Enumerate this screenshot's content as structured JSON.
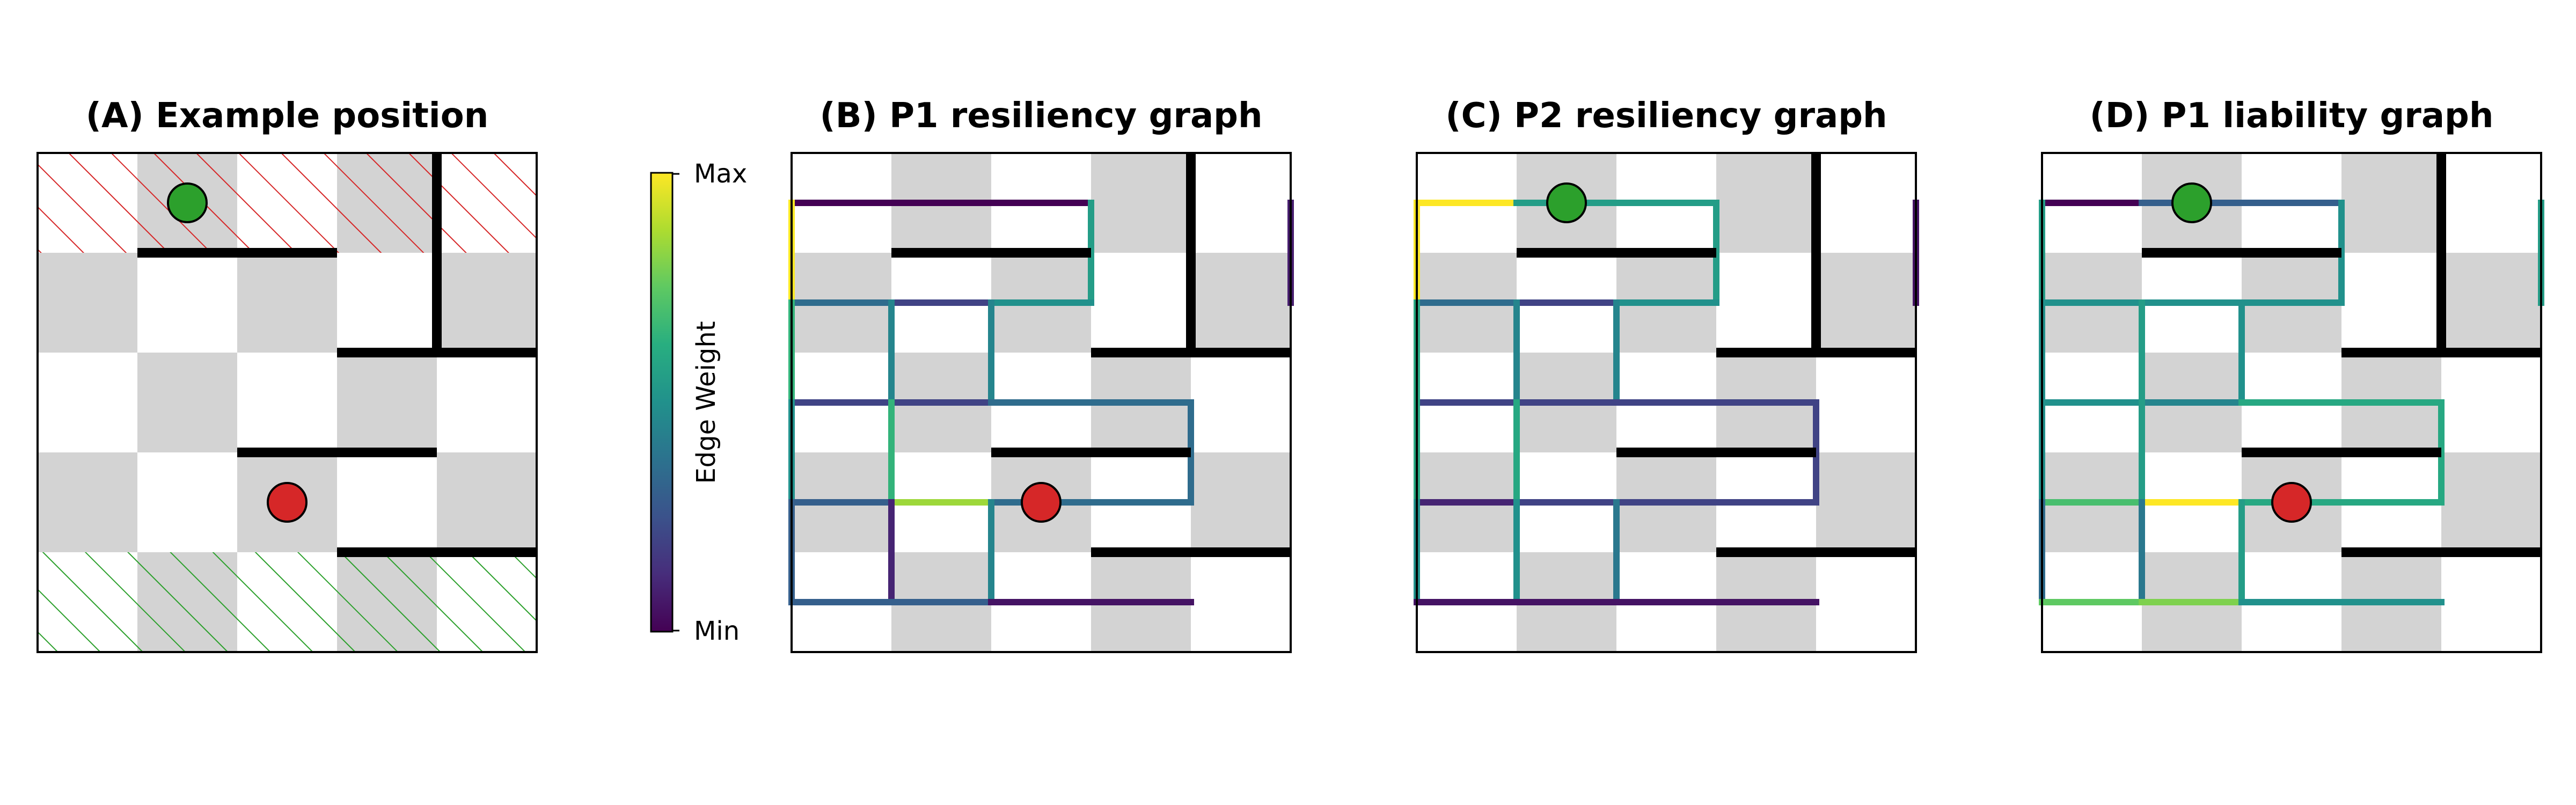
{
  "panels": [
    {
      "id": "A",
      "title": "(A) Example position",
      "hatch_top_color": "#d62728",
      "hatch_bottom_color": "#2ca02c",
      "walls": [
        [
          1,
          1,
          3,
          1
        ],
        [
          4,
          0,
          4,
          2
        ],
        [
          3,
          2,
          5,
          2
        ],
        [
          2,
          3,
          4,
          3
        ],
        [
          3,
          4,
          5,
          4
        ]
      ],
      "pieces": [
        {
          "name": "p1-piece",
          "col": 1,
          "row": 0,
          "color": "#2ca02c"
        },
        {
          "name": "p2-piece",
          "col": 2,
          "row": 3,
          "color": "#d62728"
        }
      ],
      "edges": []
    },
    {
      "id": "B",
      "title": "(B) P1 resiliency graph",
      "walls": [
        [
          1,
          1,
          3,
          1
        ],
        [
          4,
          0,
          4,
          2
        ],
        [
          3,
          2,
          5,
          2
        ],
        [
          2,
          3,
          4,
          3
        ],
        [
          3,
          4,
          5,
          4
        ]
      ],
      "pieces": [
        {
          "name": "p2-piece",
          "col": 2,
          "row": 3,
          "color": "#d62728"
        }
      ],
      "edges": [
        {
          "a": [
            0,
            0
          ],
          "b": [
            1,
            0
          ],
          "w": 0.0
        },
        {
          "a": [
            1,
            0
          ],
          "b": [
            2,
            0
          ],
          "w": 0.0
        },
        {
          "a": [
            2,
            0
          ],
          "b": [
            3,
            0
          ],
          "w": 0.0
        },
        {
          "a": [
            0,
            0
          ],
          "b": [
            0,
            1
          ],
          "w": 1.0
        },
        {
          "a": [
            3,
            0
          ],
          "b": [
            3,
            1
          ],
          "w": 0.55
        },
        {
          "a": [
            5,
            0
          ],
          "b": [
            5,
            1
          ],
          "w": 0.08
        },
        {
          "a": [
            0,
            1
          ],
          "b": [
            1,
            1
          ],
          "w": 0.35
        },
        {
          "a": [
            1,
            1
          ],
          "b": [
            2,
            1
          ],
          "w": 0.2
        },
        {
          "a": [
            2,
            1
          ],
          "b": [
            3,
            1
          ],
          "w": 0.5
        },
        {
          "a": [
            0,
            1
          ],
          "b": [
            0,
            2
          ],
          "w": 0.65
        },
        {
          "a": [
            1,
            1
          ],
          "b": [
            1,
            2
          ],
          "w": 0.45
        },
        {
          "a": [
            2,
            1
          ],
          "b": [
            2,
            2
          ],
          "w": 0.45
        },
        {
          "a": [
            0,
            2
          ],
          "b": [
            1,
            2
          ],
          "w": 0.2
        },
        {
          "a": [
            1,
            2
          ],
          "b": [
            2,
            2
          ],
          "w": 0.2
        },
        {
          "a": [
            2,
            2
          ],
          "b": [
            3,
            2
          ],
          "w": 0.35
        },
        {
          "a": [
            3,
            2
          ],
          "b": [
            4,
            2
          ],
          "w": 0.35
        },
        {
          "a": [
            4,
            2
          ],
          "b": [
            4,
            3
          ],
          "w": 0.35
        },
        {
          "a": [
            0,
            2
          ],
          "b": [
            0,
            3
          ],
          "w": 0.5
        },
        {
          "a": [
            1,
            2
          ],
          "b": [
            1,
            3
          ],
          "w": 0.65
        },
        {
          "a": [
            0,
            3
          ],
          "b": [
            1,
            3
          ],
          "w": 0.3
        },
        {
          "a": [
            1,
            3
          ],
          "b": [
            2,
            3
          ],
          "w": 0.85
        },
        {
          "a": [
            2,
            3
          ],
          "b": [
            3,
            3
          ],
          "w": 0.35
        },
        {
          "a": [
            3,
            3
          ],
          "b": [
            4,
            3
          ],
          "w": 0.35
        },
        {
          "a": [
            0,
            3
          ],
          "b": [
            0,
            4
          ],
          "w": 0.3
        },
        {
          "a": [
            1,
            3
          ],
          "b": [
            1,
            4
          ],
          "w": 0.1
        },
        {
          "a": [
            2,
            3
          ],
          "b": [
            2,
            4
          ],
          "w": 0.45
        },
        {
          "a": [
            0,
            4
          ],
          "b": [
            1,
            4
          ],
          "w": 0.3
        },
        {
          "a": [
            1,
            4
          ],
          "b": [
            2,
            4
          ],
          "w": 0.3
        },
        {
          "a": [
            2,
            4
          ],
          "b": [
            3,
            4
          ],
          "w": 0.05
        },
        {
          "a": [
            3,
            4
          ],
          "b": [
            4,
            4
          ],
          "w": 0.05
        }
      ]
    },
    {
      "id": "C",
      "title": "(C) P2 resiliency graph",
      "walls": [
        [
          1,
          1,
          3,
          1
        ],
        [
          4,
          0,
          4,
          2
        ],
        [
          3,
          2,
          5,
          2
        ],
        [
          2,
          3,
          4,
          3
        ],
        [
          3,
          4,
          5,
          4
        ]
      ],
      "pieces": [
        {
          "name": "p1-piece",
          "col": 1,
          "row": 0,
          "color": "#2ca02c"
        }
      ],
      "edges": [
        {
          "a": [
            0,
            0
          ],
          "b": [
            1,
            0
          ],
          "w": 1.0
        },
        {
          "a": [
            1,
            0
          ],
          "b": [
            2,
            0
          ],
          "w": 0.55
        },
        {
          "a": [
            2,
            0
          ],
          "b": [
            3,
            0
          ],
          "w": 0.55
        },
        {
          "a": [
            0,
            0
          ],
          "b": [
            0,
            1
          ],
          "w": 1.0
        },
        {
          "a": [
            3,
            0
          ],
          "b": [
            3,
            1
          ],
          "w": 0.55
        },
        {
          "a": [
            5,
            0
          ],
          "b": [
            5,
            1
          ],
          "w": 0.05
        },
        {
          "a": [
            0,
            1
          ],
          "b": [
            1,
            1
          ],
          "w": 0.35
        },
        {
          "a": [
            1,
            1
          ],
          "b": [
            2,
            1
          ],
          "w": 0.2
        },
        {
          "a": [
            2,
            1
          ],
          "b": [
            3,
            1
          ],
          "w": 0.5
        },
        {
          "a": [
            0,
            1
          ],
          "b": [
            0,
            2
          ],
          "w": 0.6
        },
        {
          "a": [
            1,
            1
          ],
          "b": [
            1,
            2
          ],
          "w": 0.45
        },
        {
          "a": [
            2,
            1
          ],
          "b": [
            2,
            2
          ],
          "w": 0.45
        },
        {
          "a": [
            0,
            2
          ],
          "b": [
            1,
            2
          ],
          "w": 0.2
        },
        {
          "a": [
            1,
            2
          ],
          "b": [
            2,
            2
          ],
          "w": 0.2
        },
        {
          "a": [
            2,
            2
          ],
          "b": [
            3,
            2
          ],
          "w": 0.2
        },
        {
          "a": [
            3,
            2
          ],
          "b": [
            4,
            2
          ],
          "w": 0.2
        },
        {
          "a": [
            4,
            2
          ],
          "b": [
            4,
            3
          ],
          "w": 0.2
        },
        {
          "a": [
            0,
            2
          ],
          "b": [
            0,
            3
          ],
          "w": 0.6
        },
        {
          "a": [
            1,
            2
          ],
          "b": [
            1,
            3
          ],
          "w": 0.6
        },
        {
          "a": [
            0,
            3
          ],
          "b": [
            1,
            3
          ],
          "w": 0.1
        },
        {
          "a": [
            1,
            3
          ],
          "b": [
            2,
            3
          ],
          "w": 0.2
        },
        {
          "a": [
            2,
            3
          ],
          "b": [
            3,
            3
          ],
          "w": 0.2
        },
        {
          "a": [
            3,
            3
          ],
          "b": [
            4,
            3
          ],
          "w": 0.2
        },
        {
          "a": [
            0,
            3
          ],
          "b": [
            0,
            4
          ],
          "w": 0.5
        },
        {
          "a": [
            1,
            3
          ],
          "b": [
            1,
            4
          ],
          "w": 0.5
        },
        {
          "a": [
            2,
            3
          ],
          "b": [
            2,
            4
          ],
          "w": 0.4
        },
        {
          "a": [
            0,
            4
          ],
          "b": [
            1,
            4
          ],
          "w": 0.05
        },
        {
          "a": [
            1,
            4
          ],
          "b": [
            2,
            4
          ],
          "w": 0.05
        },
        {
          "a": [
            2,
            4
          ],
          "b": [
            3,
            4
          ],
          "w": 0.05
        },
        {
          "a": [
            3,
            4
          ],
          "b": [
            4,
            4
          ],
          "w": 0.05
        }
      ]
    },
    {
      "id": "D",
      "title": "(D) P1 liability graph",
      "walls": [
        [
          1,
          1,
          3,
          1
        ],
        [
          4,
          0,
          4,
          2
        ],
        [
          3,
          2,
          5,
          2
        ],
        [
          2,
          3,
          4,
          3
        ],
        [
          3,
          4,
          5,
          4
        ]
      ],
      "pieces": [
        {
          "name": "p1-piece",
          "col": 1,
          "row": 0,
          "color": "#2ca02c"
        },
        {
          "name": "p2-piece",
          "col": 2,
          "row": 3,
          "color": "#d62728"
        }
      ],
      "edges": [
        {
          "a": [
            0,
            0
          ],
          "b": [
            1,
            0
          ],
          "w": 0.0
        },
        {
          "a": [
            1,
            0
          ],
          "b": [
            2,
            0
          ],
          "w": 0.3
        },
        {
          "a": [
            2,
            0
          ],
          "b": [
            3,
            0
          ],
          "w": 0.3
        },
        {
          "a": [
            0,
            0
          ],
          "b": [
            0,
            1
          ],
          "w": 0.55
        },
        {
          "a": [
            3,
            0
          ],
          "b": [
            3,
            1
          ],
          "w": 0.5
        },
        {
          "a": [
            5,
            0
          ],
          "b": [
            5,
            1
          ],
          "w": 0.55
        },
        {
          "a": [
            0,
            1
          ],
          "b": [
            1,
            1
          ],
          "w": 0.5
        },
        {
          "a": [
            1,
            1
          ],
          "b": [
            2,
            1
          ],
          "w": 0.5
        },
        {
          "a": [
            2,
            1
          ],
          "b": [
            3,
            1
          ],
          "w": 0.5
        },
        {
          "a": [
            0,
            1
          ],
          "b": [
            0,
            2
          ],
          "w": 0.5
        },
        {
          "a": [
            1,
            1
          ],
          "b": [
            1,
            2
          ],
          "w": 0.55
        },
        {
          "a": [
            2,
            1
          ],
          "b": [
            2,
            2
          ],
          "w": 0.5
        },
        {
          "a": [
            0,
            2
          ],
          "b": [
            1,
            2
          ],
          "w": 0.5
        },
        {
          "a": [
            1,
            2
          ],
          "b": [
            2,
            2
          ],
          "w": 0.45
        },
        {
          "a": [
            2,
            2
          ],
          "b": [
            3,
            2
          ],
          "w": 0.6
        },
        {
          "a": [
            3,
            2
          ],
          "b": [
            4,
            2
          ],
          "w": 0.6
        },
        {
          "a": [
            4,
            2
          ],
          "b": [
            4,
            3
          ],
          "w": 0.6
        },
        {
          "a": [
            0,
            2
          ],
          "b": [
            0,
            3
          ],
          "w": 0.5
        },
        {
          "a": [
            1,
            2
          ],
          "b": [
            1,
            3
          ],
          "w": 0.55
        },
        {
          "a": [
            0,
            3
          ],
          "b": [
            1,
            3
          ],
          "w": 0.7
        },
        {
          "a": [
            1,
            3
          ],
          "b": [
            2,
            3
          ],
          "w": 1.0
        },
        {
          "a": [
            2,
            3
          ],
          "b": [
            3,
            3
          ],
          "w": 0.6
        },
        {
          "a": [
            3,
            3
          ],
          "b": [
            4,
            3
          ],
          "w": 0.6
        },
        {
          "a": [
            0,
            3
          ],
          "b": [
            0,
            4
          ],
          "w": 0.35
        },
        {
          "a": [
            1,
            3
          ],
          "b": [
            1,
            4
          ],
          "w": 0.4
        },
        {
          "a": [
            2,
            3
          ],
          "b": [
            2,
            4
          ],
          "w": 0.55
        },
        {
          "a": [
            0,
            4
          ],
          "b": [
            1,
            4
          ],
          "w": 0.75
        },
        {
          "a": [
            1,
            4
          ],
          "b": [
            2,
            4
          ],
          "w": 0.8
        },
        {
          "a": [
            2,
            4
          ],
          "b": [
            3,
            4
          ],
          "w": 0.5
        },
        {
          "a": [
            3,
            4
          ],
          "b": [
            4,
            4
          ],
          "w": 0.5
        }
      ]
    }
  ],
  "colorbar": {
    "label": "Edge Weight",
    "max_label": "Max",
    "min_label": "Min",
    "colormap": "viridis"
  }
}
